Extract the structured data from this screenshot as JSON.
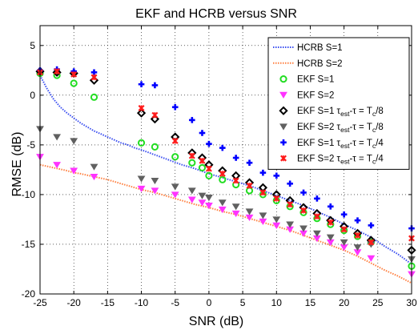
{
  "chart_data": {
    "type": "scatter",
    "title": "EKF and HCRB versus SNR",
    "xlabel": "SNR (dB)",
    "ylabel": "RMSE (dB)",
    "xlim": [
      -25,
      30
    ],
    "ylim": [
      -20,
      7
    ],
    "xticks": [
      -25,
      -20,
      -15,
      -10,
      -5,
      0,
      5,
      10,
      15,
      20,
      25,
      30
    ],
    "yticks": [
      -20,
      -15,
      -10,
      -5,
      0,
      5
    ],
    "grid": true,
    "legend_position": "top-right",
    "series": [
      {
        "name": "HCRB S=1",
        "kind": "line",
        "style": "dotted",
        "color": "#3b4ff0",
        "x": [
          -25,
          -24,
          -23,
          -22,
          -21,
          -20,
          -19,
          -18,
          -17,
          -16,
          -15,
          -14,
          -13,
          -12,
          -11,
          -10,
          -8,
          -6,
          -4,
          -2,
          0,
          2,
          4,
          6,
          8,
          10,
          12,
          14,
          16,
          18,
          20,
          22,
          24,
          26,
          28,
          30
        ],
        "y": [
          2.0,
          0.7,
          -0.4,
          -1.2,
          -1.8,
          -2.3,
          -2.8,
          -3.2,
          -3.6,
          -3.9,
          -4.2,
          -4.5,
          -4.8,
          -5.0,
          -5.3,
          -5.5,
          -6.0,
          -6.5,
          -7.0,
          -7.4,
          -7.9,
          -8.3,
          -8.7,
          -9.1,
          -9.6,
          -10.1,
          -10.6,
          -11.1,
          -11.7,
          -12.3,
          -13.0,
          -13.6,
          -14.3,
          -15.2,
          -16.0,
          -17.0
        ]
      },
      {
        "name": "HCRB S=2",
        "kind": "line",
        "style": "dotted",
        "color": "#ff7f3f",
        "x": [
          -25,
          -23,
          -21,
          -20,
          -19,
          -17,
          -15,
          -13,
          -11,
          -10,
          -8,
          -6,
          -4,
          -2,
          0,
          2,
          4,
          6,
          8,
          10,
          12,
          14,
          16,
          18,
          20,
          22,
          24,
          26,
          28,
          30
        ],
        "y": [
          -7.0,
          -7.3,
          -7.6,
          -7.8,
          -7.9,
          -8.2,
          -8.5,
          -8.9,
          -9.3,
          -9.5,
          -9.8,
          -10.2,
          -10.6,
          -11.0,
          -11.3,
          -11.7,
          -12.0,
          -12.4,
          -12.8,
          -13.2,
          -13.6,
          -14.1,
          -14.6,
          -15.1,
          -15.6,
          -16.2,
          -16.9,
          -17.6,
          -18.2,
          -18.9
        ]
      },
      {
        "name": "EKF S=1",
        "kind": "marker",
        "marker": "circle",
        "color": "#22dd22",
        "x": [
          -25,
          -22.5,
          -20,
          -17,
          -10,
          -8,
          -5,
          -2.5,
          -1,
          0,
          2,
          4,
          6,
          8,
          10,
          12,
          14,
          16,
          18,
          20,
          22,
          24,
          30
        ],
        "y": [
          2.2,
          2.0,
          1.2,
          -0.2,
          -4.8,
          -5.2,
          -6.2,
          -6.8,
          -7.3,
          -8.1,
          -8.5,
          -9.0,
          -9.6,
          -10.0,
          -10.6,
          -11.2,
          -11.8,
          -12.4,
          -13.0,
          -13.6,
          -14.2,
          -14.8,
          -17.2
        ]
      },
      {
        "name": "EKF S=2",
        "kind": "marker",
        "marker": "triangle-down",
        "color": "#ff33ff",
        "x": [
          -25,
          -22.5,
          -20,
          -17,
          -10,
          -8,
          -5,
          -2.5,
          -1,
          0,
          2,
          4,
          6,
          8,
          10,
          12,
          14,
          16,
          18,
          20,
          22,
          24,
          30
        ],
        "y": [
          -6.2,
          -7.0,
          -7.6,
          -8.2,
          -9.4,
          -9.6,
          -10.0,
          -10.5,
          -10.8,
          -11.1,
          -11.5,
          -11.9,
          -12.3,
          -12.7,
          -13.1,
          -13.5,
          -13.9,
          -14.4,
          -14.8,
          -15.3,
          -15.8,
          -16.4,
          -18.0
        ]
      },
      {
        "name": "EKF S=1 τest-τ = Tc/8",
        "kind": "marker",
        "marker": "diamond",
        "color": "#000000",
        "x": [
          -25,
          -22.5,
          -20,
          -17,
          -10,
          -8,
          -5,
          -2.5,
          -1,
          0,
          2,
          4,
          6,
          8,
          10,
          12,
          14,
          16,
          18,
          20,
          22,
          24,
          30
        ],
        "y": [
          2.4,
          2.3,
          2.2,
          1.5,
          -1.8,
          -2.4,
          -4.2,
          -5.8,
          -6.3,
          -7.0,
          -7.6,
          -8.1,
          -8.8,
          -9.3,
          -10.0,
          -10.6,
          -11.3,
          -11.9,
          -12.6,
          -13.2,
          -13.9,
          -14.6,
          -15.6
        ]
      },
      {
        "name": "EKF S=2 τest-τ = Tc/8",
        "kind": "marker",
        "marker": "triangle-down",
        "color": "#606060",
        "x": [
          -25,
          -22.5,
          -20,
          -17,
          -10,
          -8,
          -5,
          -2.5,
          -1,
          0,
          2,
          4,
          6,
          8,
          10,
          12,
          14,
          16,
          18,
          20,
          22,
          24,
          30
        ],
        "y": [
          -3.4,
          -4.2,
          -4.6,
          -7.2,
          -8.4,
          -8.6,
          -9.2,
          -9.6,
          -10.1,
          -10.3,
          -10.8,
          -11.2,
          -11.7,
          -12.1,
          -12.5,
          -13.0,
          -13.4,
          -13.9,
          -14.3,
          -14.8,
          -15.3,
          -15.0,
          -16.5
        ]
      },
      {
        "name": "EKF S=1 τest-τ = Tc/4",
        "kind": "marker",
        "marker": "plus",
        "color": "#0000ff",
        "x": [
          -25,
          -22.5,
          -20,
          -17,
          -10,
          -8,
          -5,
          -2.5,
          -1,
          0,
          2,
          4,
          6,
          8,
          10,
          12,
          14,
          16,
          18,
          20,
          22,
          24,
          30
        ],
        "y": [
          2.5,
          2.6,
          2.4,
          2.3,
          1.1,
          1.0,
          -1.2,
          -2.5,
          -3.8,
          -4.9,
          -5.3,
          -6.3,
          -6.8,
          -7.8,
          -8.1,
          -8.9,
          -9.8,
          -10.4,
          -11.2,
          -12.0,
          -12.6,
          -13.1,
          -13.4
        ]
      },
      {
        "name": "EKF S=2 τest-τ = Tc/4",
        "kind": "marker",
        "marker": "asterisk",
        "color": "#ff1a1a",
        "x": [
          -25,
          -22.5,
          -20,
          -17,
          -10,
          -8,
          -5,
          -2.5,
          -1,
          0,
          2,
          4,
          6,
          8,
          10,
          12,
          14,
          16,
          18,
          20,
          22,
          24,
          30
        ],
        "y": [
          2.3,
          2.4,
          2.1,
          1.8,
          -1.3,
          -2.0,
          -4.6,
          -6.1,
          -6.6,
          -7.4,
          -7.9,
          -8.6,
          -9.1,
          -9.8,
          -10.4,
          -11.0,
          -11.6,
          -12.2,
          -12.8,
          -13.5,
          -14.1,
          -14.8,
          -14.4
        ]
      }
    ]
  },
  "legend": [
    {
      "base": "HCRB S=1",
      "sub1": "",
      "mid": "",
      "sub2": "",
      "tail": ""
    },
    {
      "base": "HCRB S=2",
      "sub1": "",
      "mid": "",
      "sub2": "",
      "tail": ""
    },
    {
      "base": "EKF S=1",
      "sub1": "",
      "mid": "",
      "sub2": "",
      "tail": ""
    },
    {
      "base": "EKF S=2",
      "sub1": "",
      "mid": "",
      "sub2": "",
      "tail": ""
    },
    {
      "base": "EKF S=1 τ",
      "sub1": "est",
      "mid": "-τ = T",
      "sub2": "c",
      "tail": "/8"
    },
    {
      "base": "EKF S=2 τ",
      "sub1": "est",
      "mid": "-τ = T",
      "sub2": "c",
      "tail": "/8"
    },
    {
      "base": "EKF S=1 τ",
      "sub1": "est",
      "mid": "-τ = T",
      "sub2": "c",
      "tail": "/4"
    },
    {
      "base": "EKF S=2 τ",
      "sub1": "est",
      "mid": "-τ = T",
      "sub2": "c",
      "tail": "/4"
    }
  ]
}
